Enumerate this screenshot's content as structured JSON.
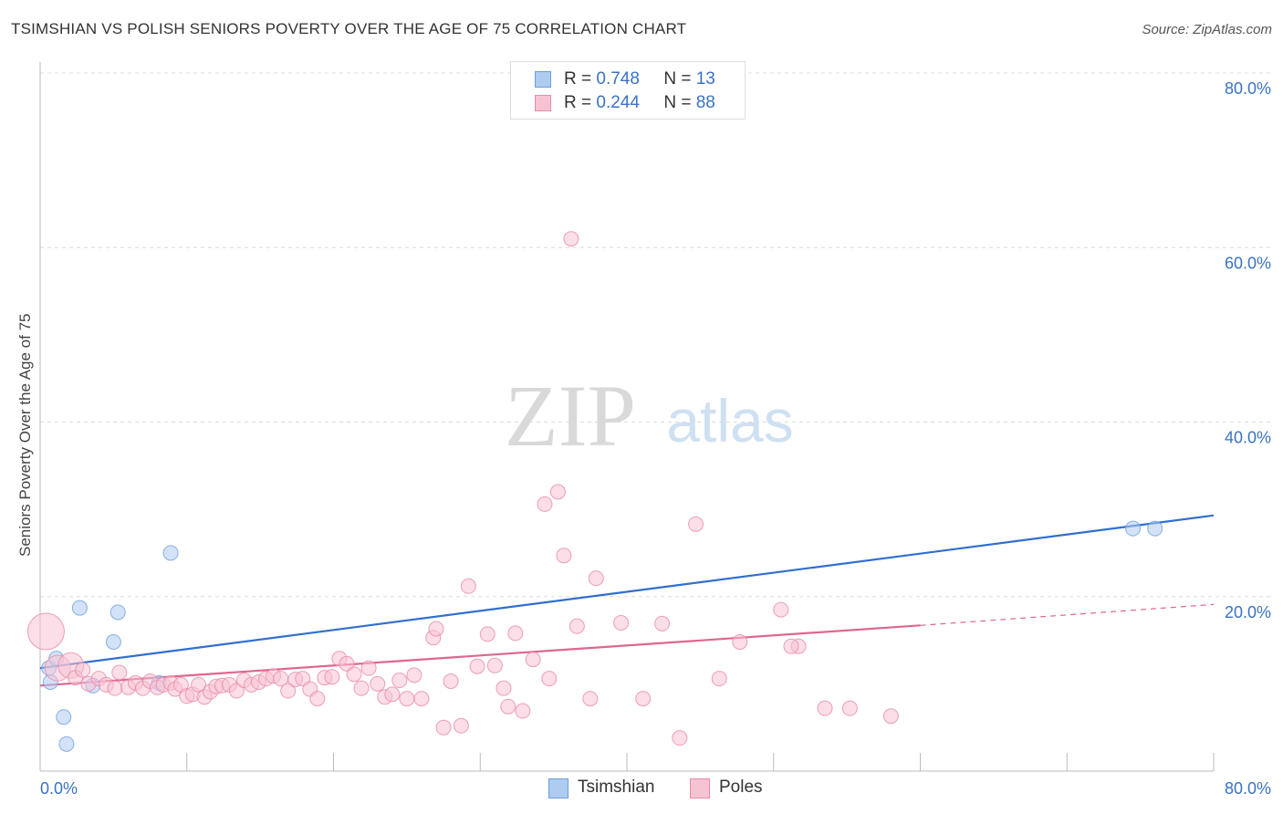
{
  "title": "TSIMSHIAN VS POLISH SENIORS POVERTY OVER THE AGE OF 75 CORRELATION CHART",
  "source": "Source: ZipAtlas.com",
  "watermark": {
    "zip": "ZIP",
    "atlas": "atlas"
  },
  "legend": {
    "rows": [
      {
        "r_label": "R =",
        "r_value": "0.748",
        "n_label": "N =",
        "n_value": "13",
        "color": "#aecbf0",
        "border": "#6d9fdc"
      },
      {
        "r_label": "R =",
        "r_value": "0.244",
        "n_label": "N =",
        "n_value": "88",
        "color": "#f7c3d3",
        "border": "#e98aa8"
      }
    ]
  },
  "bottom_legend": [
    {
      "label": "Tsimshian",
      "color": "#aecbf0",
      "border": "#6d9fdc"
    },
    {
      "label": "Poles",
      "color": "#f7c3d3",
      "border": "#e98aa8"
    }
  ],
  "chart_data": {
    "type": "scatter",
    "title": "TSIMSHIAN VS POLISH SENIORS POVERTY OVER THE AGE OF 75 CORRELATION CHART",
    "xlabel": "",
    "ylabel": "Seniors Poverty Over the Age of 75",
    "xlim": [
      0,
      80
    ],
    "ylim": [
      0,
      80
    ],
    "x_tick_labels": [
      "0.0%",
      "80.0%"
    ],
    "y_tick_labels": [
      "80.0%",
      "60.0%",
      "40.0%",
      "20.0%"
    ],
    "y_ticks": [
      80,
      60,
      40,
      20
    ],
    "grid": "horizontal dashed",
    "legend_placement": "top-center",
    "series": [
      {
        "name": "Tsimshian",
        "color": "#6d9fdc",
        "fill": "#aecbf0",
        "r": 0.748,
        "n": 13,
        "trend": {
          "x": [
            0,
            80
          ],
          "y": [
            11.8,
            29.3
          ],
          "color": "#2f6fd0"
        },
        "points": [
          [
            0.6,
            11.8
          ],
          [
            0.7,
            10.2
          ],
          [
            1.1,
            12.9
          ],
          [
            2.7,
            18.7
          ],
          [
            1.6,
            6.2
          ],
          [
            1.8,
            3.1
          ],
          [
            3.6,
            9.8
          ],
          [
            5.0,
            14.8
          ],
          [
            5.3,
            18.2
          ],
          [
            8.1,
            10.1
          ],
          [
            8.9,
            25.0
          ],
          [
            74.5,
            27.8
          ],
          [
            76.0,
            27.8
          ]
        ]
      },
      {
        "name": "Poles",
        "color": "#e98aa8",
        "fill": "#f7c3d3",
        "r": 0.244,
        "n": 88,
        "trend": {
          "x": [
            0,
            60,
            80
          ],
          "y": [
            9.8,
            16.7,
            19.1
          ],
          "color": "#e06590",
          "dashed_from": 60
        },
        "points": [
          [
            0.4,
            16.0
          ],
          [
            1.2,
            11.8
          ],
          [
            2.1,
            12.1
          ],
          [
            2.4,
            10.7
          ],
          [
            2.9,
            11.6
          ],
          [
            3.3,
            10.0
          ],
          [
            4.0,
            10.6
          ],
          [
            4.5,
            9.9
          ],
          [
            5.1,
            9.5
          ],
          [
            5.4,
            11.3
          ],
          [
            6.0,
            9.6
          ],
          [
            6.5,
            10.1
          ],
          [
            7.0,
            9.5
          ],
          [
            7.5,
            10.3
          ],
          [
            8.0,
            9.6
          ],
          [
            8.4,
            9.9
          ],
          [
            8.9,
            10.1
          ],
          [
            9.2,
            9.4
          ],
          [
            9.6,
            9.9
          ],
          [
            10.0,
            8.6
          ],
          [
            10.4,
            8.8
          ],
          [
            10.8,
            9.9
          ],
          [
            11.2,
            8.5
          ],
          [
            11.6,
            9.1
          ],
          [
            12.0,
            9.7
          ],
          [
            12.4,
            9.8
          ],
          [
            12.9,
            9.9
          ],
          [
            13.4,
            9.2
          ],
          [
            13.9,
            10.4
          ],
          [
            14.4,
            9.9
          ],
          [
            14.9,
            10.2
          ],
          [
            15.4,
            10.6
          ],
          [
            15.9,
            10.9
          ],
          [
            16.4,
            10.6
          ],
          [
            16.9,
            9.2
          ],
          [
            17.4,
            10.5
          ],
          [
            17.9,
            10.6
          ],
          [
            18.4,
            9.4
          ],
          [
            18.9,
            8.3
          ],
          [
            19.4,
            10.7
          ],
          [
            19.9,
            10.8
          ],
          [
            20.4,
            12.9
          ],
          [
            20.9,
            12.3
          ],
          [
            21.4,
            11.1
          ],
          [
            21.9,
            9.5
          ],
          [
            22.4,
            11.8
          ],
          [
            23.0,
            10.0
          ],
          [
            23.5,
            8.5
          ],
          [
            24.0,
            8.8
          ],
          [
            24.5,
            10.4
          ],
          [
            25.0,
            8.3
          ],
          [
            25.5,
            11.0
          ],
          [
            26.0,
            8.3
          ],
          [
            26.8,
            15.3
          ],
          [
            27.0,
            16.3
          ],
          [
            27.5,
            5.0
          ],
          [
            28.0,
            10.3
          ],
          [
            28.7,
            5.2
          ],
          [
            29.2,
            21.2
          ],
          [
            29.8,
            12.0
          ],
          [
            30.5,
            15.7
          ],
          [
            31.0,
            12.1
          ],
          [
            31.6,
            9.5
          ],
          [
            31.9,
            7.4
          ],
          [
            32.4,
            15.8
          ],
          [
            32.9,
            6.9
          ],
          [
            33.6,
            12.8
          ],
          [
            34.4,
            30.6
          ],
          [
            34.7,
            10.6
          ],
          [
            35.3,
            32.0
          ],
          [
            35.7,
            24.7
          ],
          [
            36.2,
            61.0
          ],
          [
            36.6,
            16.6
          ],
          [
            37.5,
            8.3
          ],
          [
            37.9,
            22.1
          ],
          [
            39.6,
            17.0
          ],
          [
            41.1,
            8.3
          ],
          [
            42.4,
            16.9
          ],
          [
            43.6,
            3.8
          ],
          [
            44.7,
            28.3
          ],
          [
            46.3,
            10.6
          ],
          [
            47.7,
            14.8
          ],
          [
            50.5,
            18.5
          ],
          [
            51.7,
            14.3
          ],
          [
            53.5,
            7.2
          ],
          [
            55.2,
            7.2
          ],
          [
            58.0,
            6.3
          ],
          [
            51.2,
            14.3
          ]
        ]
      }
    ]
  }
}
